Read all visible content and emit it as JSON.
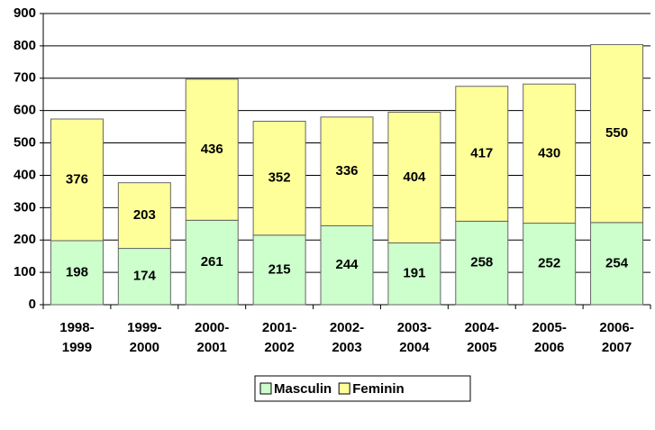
{
  "chart_data": {
    "type": "stacked_bar",
    "categories": [
      "1998-1999",
      "1999-2000",
      "2000-2001",
      "2001-2002",
      "2002-2003",
      "2003-2004",
      "2004-2005",
      "2005-2006",
      "2006-2007"
    ],
    "series": [
      {
        "name": "Masculin",
        "color": "#ccffcc",
        "values": [
          198,
          174,
          261,
          215,
          244,
          191,
          258,
          252,
          254
        ]
      },
      {
        "name": "Feminin",
        "color": "#ffff99",
        "values": [
          376,
          203,
          436,
          352,
          336,
          404,
          417,
          430,
          550
        ]
      }
    ],
    "ylim": [
      0,
      900
    ],
    "yticks": [
      0,
      100,
      200,
      300,
      400,
      500,
      600,
      700,
      800,
      900
    ],
    "grid": true,
    "legend": "bottom"
  }
}
